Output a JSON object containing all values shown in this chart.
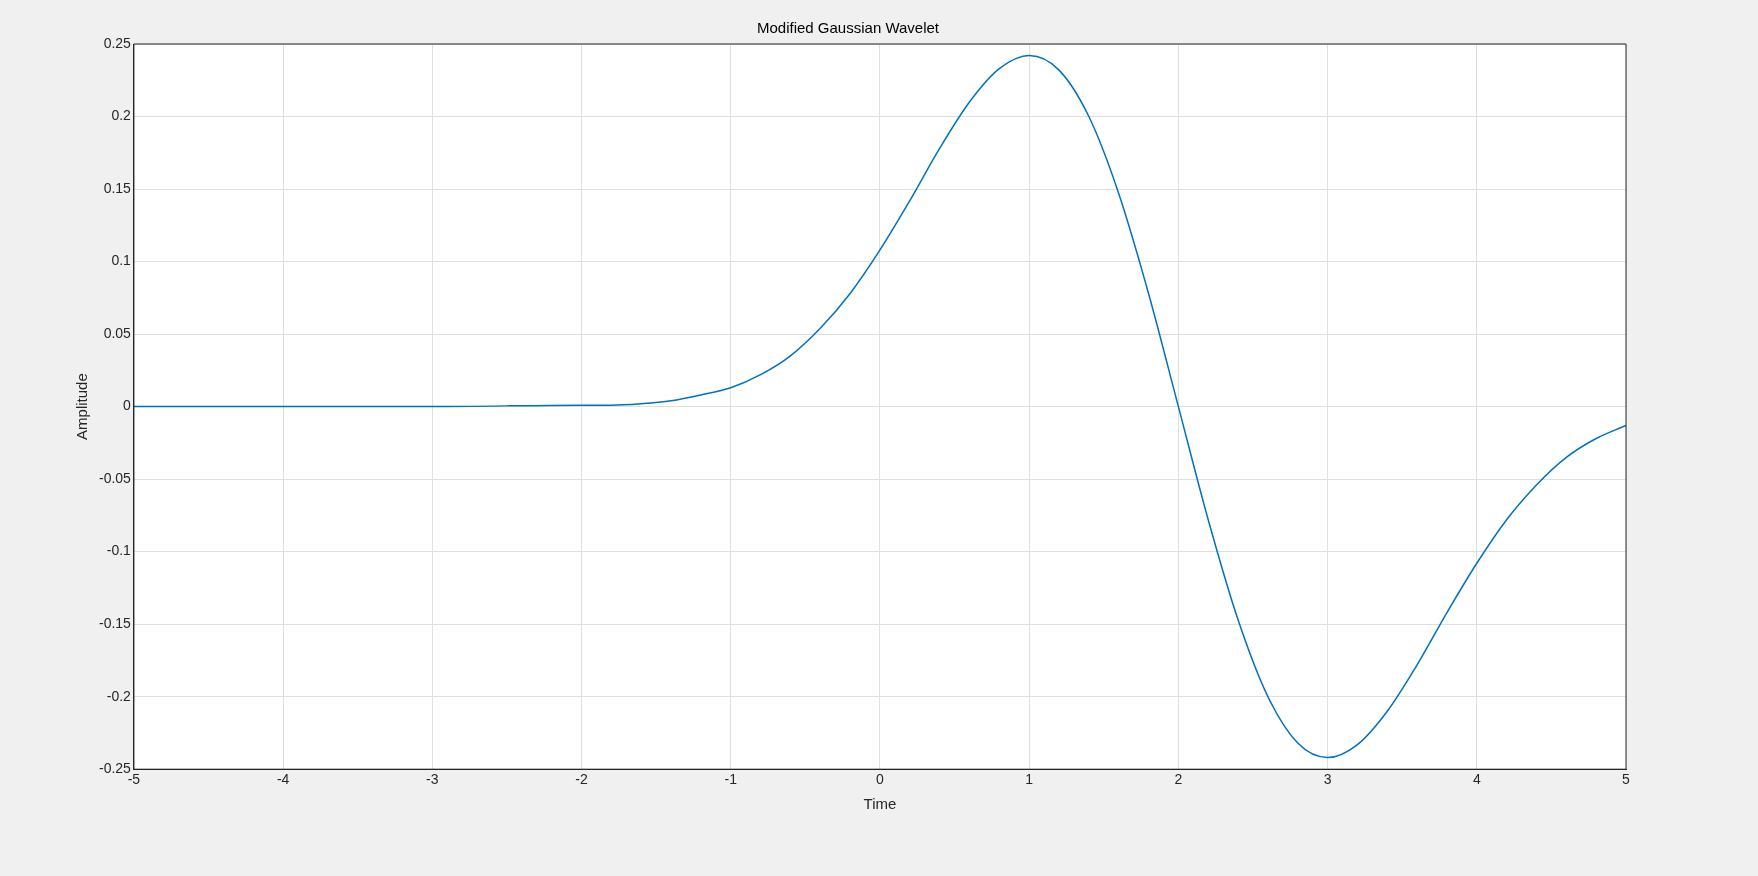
{
  "chart_data": {
    "type": "line",
    "title": "Modified Gaussian Wavelet",
    "xlabel": "Time",
    "ylabel": "Amplitude",
    "xlim": [
      -5,
      5
    ],
    "xticks": [
      -5,
      -4,
      -3,
      -2,
      -1,
      0,
      1,
      2,
      3,
      4,
      5
    ],
    "ylim": [
      -0.25,
      0.25
    ],
    "yticks": [
      -0.25,
      -0.2,
      -0.15,
      -0.1,
      -0.05,
      0,
      0.05,
      0.1,
      0.15,
      0.2,
      0.25
    ],
    "grid": true,
    "legend": false,
    "marker": "none",
    "line_style": "solid",
    "series": [
      {
        "color": "#0072bd",
        "x": [
          -5,
          -4,
          -3,
          -2,
          -1.8,
          -1.6,
          -1.4,
          -1.2,
          -1,
          -0.8,
          -0.6,
          -0.4,
          -0.2,
          0,
          0.2,
          0.4,
          0.6,
          0.8,
          1,
          1.2,
          1.4,
          1.6,
          1.8,
          2,
          2.2,
          2.4,
          2.6,
          2.8,
          3,
          3.2,
          3.4,
          3.6,
          3.8,
          4,
          4.2,
          4.4,
          4.6,
          4.8,
          5
        ],
        "values": [
          0,
          0,
          0,
          0.001,
          0.001,
          0.002,
          0.004,
          0.008,
          0.013,
          0.022,
          0.035,
          0.054,
          0.078,
          0.108,
          0.142,
          0.178,
          0.21,
          0.233,
          0.242,
          0.232,
          0.2,
          0.147,
          0.078,
          0,
          -0.078,
          -0.147,
          -0.2,
          -0.232,
          -0.242,
          -0.233,
          -0.21,
          -0.178,
          -0.142,
          -0.108,
          -0.078,
          -0.054,
          -0.035,
          -0.022,
          -0.013
        ]
      }
    ]
  }
}
